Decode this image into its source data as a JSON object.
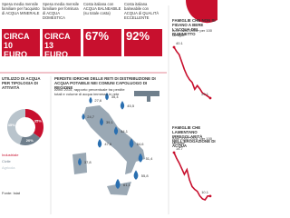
{
  "cards": [
    {
      "text": "Spesa media mensile familiare per l'acquisto di ACQUA MINERALE",
      "value": "CIRCA 10 EURO"
    },
    {
      "text": "Spesa media mensile familiare per fornitura di ACQUA DOMESTICA",
      "value": "CIRCA 13 EURO"
    },
    {
      "text": "Costa italiana con ACQUA BALNEABILE (su totale costa)",
      "value": "67%"
    },
    {
      "text": "Costa italiana balneabile con ACQUA di QUALITÀ ECCELLENTE",
      "value": "92%"
    }
  ],
  "activity": {
    "title": "UTILIZZO DI ACQUA PER TIPOLOGIA DI ATTIVITÀ",
    "slices": [
      {
        "name": "Industriale",
        "value": 35,
        "label": "35%"
      },
      {
        "name": "Civile",
        "value": 20,
        "label": "20%"
      },
      {
        "name": "Agricola",
        "value": 45,
        "label": "45%"
      }
    ],
    "note": "Fonte: Istat"
  },
  "losses": {
    "title": "PERDITE IDRICHE DELLE RETI DI DISTRIBUZIONE DI ACQUA POTABILE NEI COMUNI CAPOLUOGO DI REGIONE",
    "subtitle": "Anno 2015, rapporto percentuale tra perdite totali e volume di acqua immesso in rete",
    "cities": [
      {
        "value": 27.6,
        "label": "27,6"
      },
      {
        "value": 35.4,
        "label": "35,4"
      },
      {
        "value": 45.5,
        "label": "45,5"
      },
      {
        "value": 24.7,
        "label": "24,7"
      },
      {
        "value": 39.1,
        "label": "39,1"
      },
      {
        "value": 44.1,
        "label": "44,1"
      },
      {
        "value": 54.6,
        "label": "54,6"
      },
      {
        "value": 37.8,
        "label": "37,8"
      },
      {
        "value": 51.4,
        "label": "51,4"
      },
      {
        "value": 61.1,
        "label": "61,1"
      },
      {
        "value": 55.8,
        "label": "55,8"
      },
      {
        "value": 47.6,
        "label": "47,6"
      }
    ]
  },
  "charts": [
    {
      "title": "FAMIGLIE CHE NON SI FIDANO A BERE L'ACQUA DEL RUBINETTO",
      "subtitle": "Anni 2002-2016, per 100 famiglie",
      "values": [
        40.1,
        39.2,
        38.5,
        36.9,
        35.3,
        34.0,
        33.1,
        32.5,
        31.0,
        31.8,
        31.1,
        30.2,
        29.9,
        29.5,
        29.1
      ]
    },
    {
      "title": "FAMIGLIE CHE LAMENTANO IRREGOLARITÀ NELL'EROGAZIONE DI ACQUA",
      "subtitle": "Anni 2002-2016, per 100 famiglie",
      "values": [
        14.7,
        14.1,
        13.6,
        13.0,
        12.4,
        12.9,
        11.8,
        11.1,
        10.8,
        10.6,
        10.1,
        9.8,
        9.7,
        10.1,
        10.1
      ]
    }
  ]
}
